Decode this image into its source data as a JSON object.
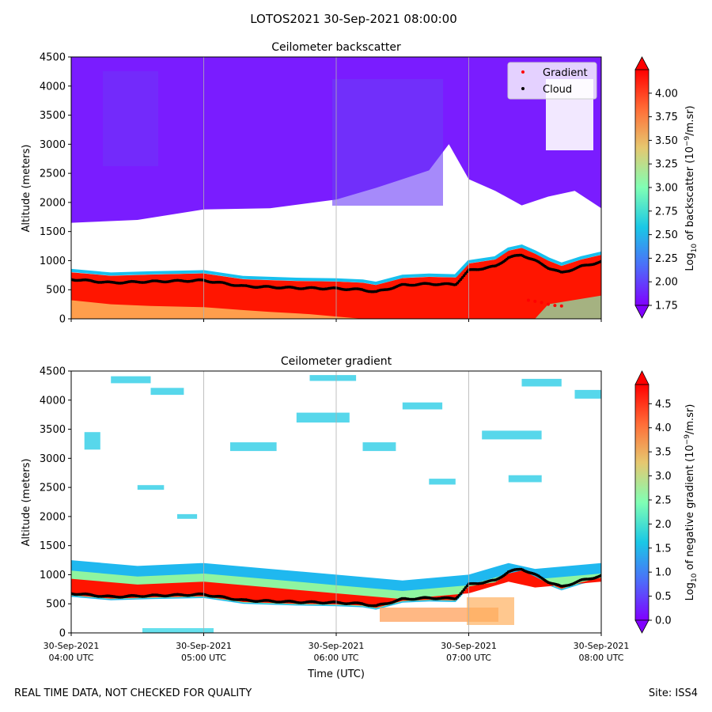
{
  "suptitle": "LOTOS2021 30-Sep-2021 08:00:00",
  "footer": {
    "left": "REAL TIME DATA, NOT CHECKED FOR QUALITY",
    "right": "Site: ISS4"
  },
  "chart_data": [
    {
      "type": "heatmap",
      "title": "Ceilometer backscatter",
      "ylabel": "Altitude (meters)",
      "xlabel": "",
      "ylim": [
        0,
        4500
      ],
      "yticks": [
        0,
        500,
        1000,
        1500,
        2000,
        2500,
        3000,
        3500,
        4000,
        4500
      ],
      "xlim_hours_utc": [
        4,
        8
      ],
      "xticks_hours_utc": [
        4,
        5,
        6,
        7,
        8
      ],
      "grid": "vertical lines at x ticks",
      "colorbar": {
        "label_main": "Log",
        "label_sub": "10",
        "label_rest": " of backscatter (10",
        "label_sup": "−9",
        "label_end": "/m.sr)",
        "ticks": [
          "1.75",
          "2.00",
          "2.25",
          "2.50",
          "2.75",
          "3.00",
          "3.25",
          "3.50",
          "3.75",
          "4.00"
        ],
        "range": [
          1.75,
          4.25
        ],
        "colormap": "rainbow",
        "extend": "both"
      },
      "legend": {
        "placement": "upper right",
        "entries": [
          {
            "label": "Gradient",
            "color": "#ff0000"
          },
          {
            "label": "Cloud",
            "color": "#000000"
          }
        ]
      },
      "colors": {
        "high": "#ff0000",
        "low": "#8000ff",
        "missing": "#ffffff"
      },
      "signal_top_m": [
        [
          4.0,
          1650
        ],
        [
          4.5,
          1700
        ],
        [
          5.0,
          1880
        ],
        [
          5.5,
          1900
        ],
        [
          6.0,
          2050
        ],
        [
          6.3,
          2250
        ],
        [
          6.5,
          2400
        ],
        [
          6.7,
          2550
        ],
        [
          6.85,
          3000
        ],
        [
          7.0,
          2400
        ],
        [
          7.2,
          2200
        ],
        [
          7.4,
          1950
        ],
        [
          7.6,
          2100
        ],
        [
          7.8,
          2200
        ],
        [
          8.0,
          1900
        ]
      ],
      "cloud_layer_m": [
        [
          4.0,
          680
        ],
        [
          4.3,
          620
        ],
        [
          4.6,
          640
        ],
        [
          5.0,
          660
        ],
        [
          5.3,
          560
        ],
        [
          5.7,
          530
        ],
        [
          6.0,
          520
        ],
        [
          6.2,
          500
        ],
        [
          6.3,
          460
        ],
        [
          6.5,
          580
        ],
        [
          6.7,
          600
        ],
        [
          6.9,
          590
        ],
        [
          7.0,
          830
        ],
        [
          7.2,
          900
        ],
        [
          7.3,
          1050
        ],
        [
          7.4,
          1100
        ],
        [
          7.5,
          1000
        ],
        [
          7.6,
          880
        ],
        [
          7.7,
          790
        ],
        [
          7.85,
          900
        ],
        [
          8.0,
          980
        ]
      ]
    },
    {
      "type": "heatmap",
      "title": "Ceilometer gradient",
      "ylabel": "Altitude (meters)",
      "xlabel": "Time (UTC)",
      "ylim": [
        0,
        4500
      ],
      "yticks": [
        0,
        500,
        1000,
        1500,
        2000,
        2500,
        3000,
        3500,
        4000,
        4500
      ],
      "xticks": [
        {
          "line1": "30-Sep-2021",
          "line2": "04:00 UTC",
          "hour": 4
        },
        {
          "line1": "30-Sep-2021",
          "line2": "05:00 UTC",
          "hour": 5
        },
        {
          "line1": "30-Sep-2021",
          "line2": "06:00 UTC",
          "hour": 6
        },
        {
          "line1": "30-Sep-2021",
          "line2": "07:00 UTC",
          "hour": 7
        },
        {
          "line1": "30-Sep-2021",
          "line2": "08:00 UTC",
          "hour": 8
        }
      ],
      "grid": "vertical lines at x ticks",
      "colorbar": {
        "label_main": "Log",
        "label_sub": "10",
        "label_rest": " of negative gradient (10",
        "label_sup": "−9",
        "label_end": "/m.sr)",
        "ticks": [
          "0.0",
          "0.5",
          "1.0",
          "1.5",
          "2.0",
          "2.5",
          "3.0",
          "3.5",
          "4.0",
          "4.5"
        ],
        "range": [
          0,
          4.9
        ],
        "colormap": "rainbow",
        "extend": "both"
      },
      "band_top_m": [
        [
          4.0,
          1250
        ],
        [
          4.5,
          1150
        ],
        [
          5.0,
          1200
        ],
        [
          5.5,
          1100
        ],
        [
          6.0,
          1000
        ],
        [
          6.5,
          900
        ],
        [
          7.0,
          1000
        ],
        [
          7.3,
          1200
        ],
        [
          7.5,
          1100
        ],
        [
          8.0,
          1200
        ]
      ],
      "cloud_layer_m": [
        [
          4.0,
          680
        ],
        [
          4.3,
          620
        ],
        [
          4.6,
          640
        ],
        [
          5.0,
          660
        ],
        [
          5.3,
          560
        ],
        [
          5.7,
          530
        ],
        [
          6.0,
          520
        ],
        [
          6.2,
          500
        ],
        [
          6.3,
          460
        ],
        [
          6.5,
          580
        ],
        [
          6.7,
          600
        ],
        [
          6.9,
          590
        ],
        [
          7.0,
          830
        ],
        [
          7.2,
          900
        ],
        [
          7.3,
          1050
        ],
        [
          7.4,
          1100
        ],
        [
          7.5,
          1000
        ],
        [
          7.6,
          880
        ],
        [
          7.7,
          790
        ],
        [
          7.85,
          900
        ],
        [
          8.0,
          980
        ]
      ]
    }
  ]
}
